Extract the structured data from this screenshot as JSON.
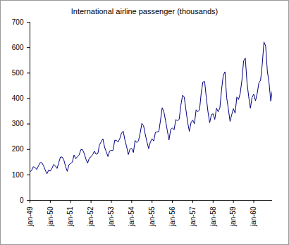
{
  "chart_data": {
    "type": "line",
    "title": "International airline passenger (thousands)",
    "categories": [
      "jan-49",
      null,
      null,
      null,
      null,
      null,
      null,
      null,
      null,
      null,
      null,
      null,
      "jan-50",
      null,
      null,
      null,
      null,
      null,
      null,
      null,
      null,
      null,
      null,
      null,
      "jan-51",
      null,
      null,
      null,
      null,
      null,
      null,
      null,
      null,
      null,
      null,
      null,
      "jan-52",
      null,
      null,
      null,
      null,
      null,
      null,
      null,
      null,
      null,
      null,
      null,
      "jan-53",
      null,
      null,
      null,
      null,
      null,
      null,
      null,
      null,
      null,
      null,
      null,
      "jan-54",
      null,
      null,
      null,
      null,
      null,
      null,
      null,
      null,
      null,
      null,
      null,
      "jan-55",
      null,
      null,
      null,
      null,
      null,
      null,
      null,
      null,
      null,
      null,
      null,
      "jan-56",
      null,
      null,
      null,
      null,
      null,
      null,
      null,
      null,
      null,
      null,
      null,
      "jan-57",
      null,
      null,
      null,
      null,
      null,
      null,
      null,
      null,
      null,
      null,
      null,
      "jan-58",
      null,
      null,
      null,
      null,
      null,
      null,
      null,
      null,
      null,
      null,
      null,
      "jan-59",
      null,
      null,
      null,
      null,
      null,
      null,
      null,
      null,
      null,
      null,
      null,
      "jan-60",
      null,
      null,
      null,
      null,
      null,
      null,
      null,
      null,
      null,
      null,
      null
    ],
    "values": [
      112,
      118,
      132,
      129,
      121,
      135,
      148,
      148,
      136,
      119,
      104,
      118,
      115,
      126,
      141,
      135,
      125,
      149,
      170,
      170,
      158,
      133,
      114,
      140,
      145,
      150,
      178,
      163,
      172,
      178,
      199,
      199,
      184,
      162,
      146,
      166,
      171,
      180,
      193,
      181,
      183,
      218,
      230,
      242,
      209,
      191,
      172,
      194,
      196,
      196,
      236,
      235,
      229,
      243,
      264,
      272,
      237,
      211,
      180,
      201,
      204,
      188,
      235,
      227,
      234,
      264,
      302,
      293,
      259,
      229,
      203,
      229,
      242,
      233,
      267,
      269,
      270,
      315,
      364,
      347,
      312,
      274,
      237,
      278,
      284,
      277,
      317,
      313,
      318,
      374,
      413,
      405,
      355,
      306,
      271,
      306,
      315,
      301,
      356,
      348,
      355,
      422,
      465,
      467,
      404,
      347,
      305,
      336,
      340,
      318,
      362,
      348,
      363,
      435,
      491,
      505,
      404,
      359,
      310,
      337,
      360,
      342,
      406,
      396,
      420,
      472,
      548,
      559,
      463,
      407,
      362,
      405,
      417,
      391,
      419,
      461,
      472,
      535,
      622,
      606,
      508,
      461,
      390,
      432
    ],
    "color": "#000080",
    "ylim": [
      0,
      700
    ],
    "yticks": [
      0,
      100,
      200,
      300,
      400,
      500,
      600,
      700
    ],
    "grid": false
  }
}
